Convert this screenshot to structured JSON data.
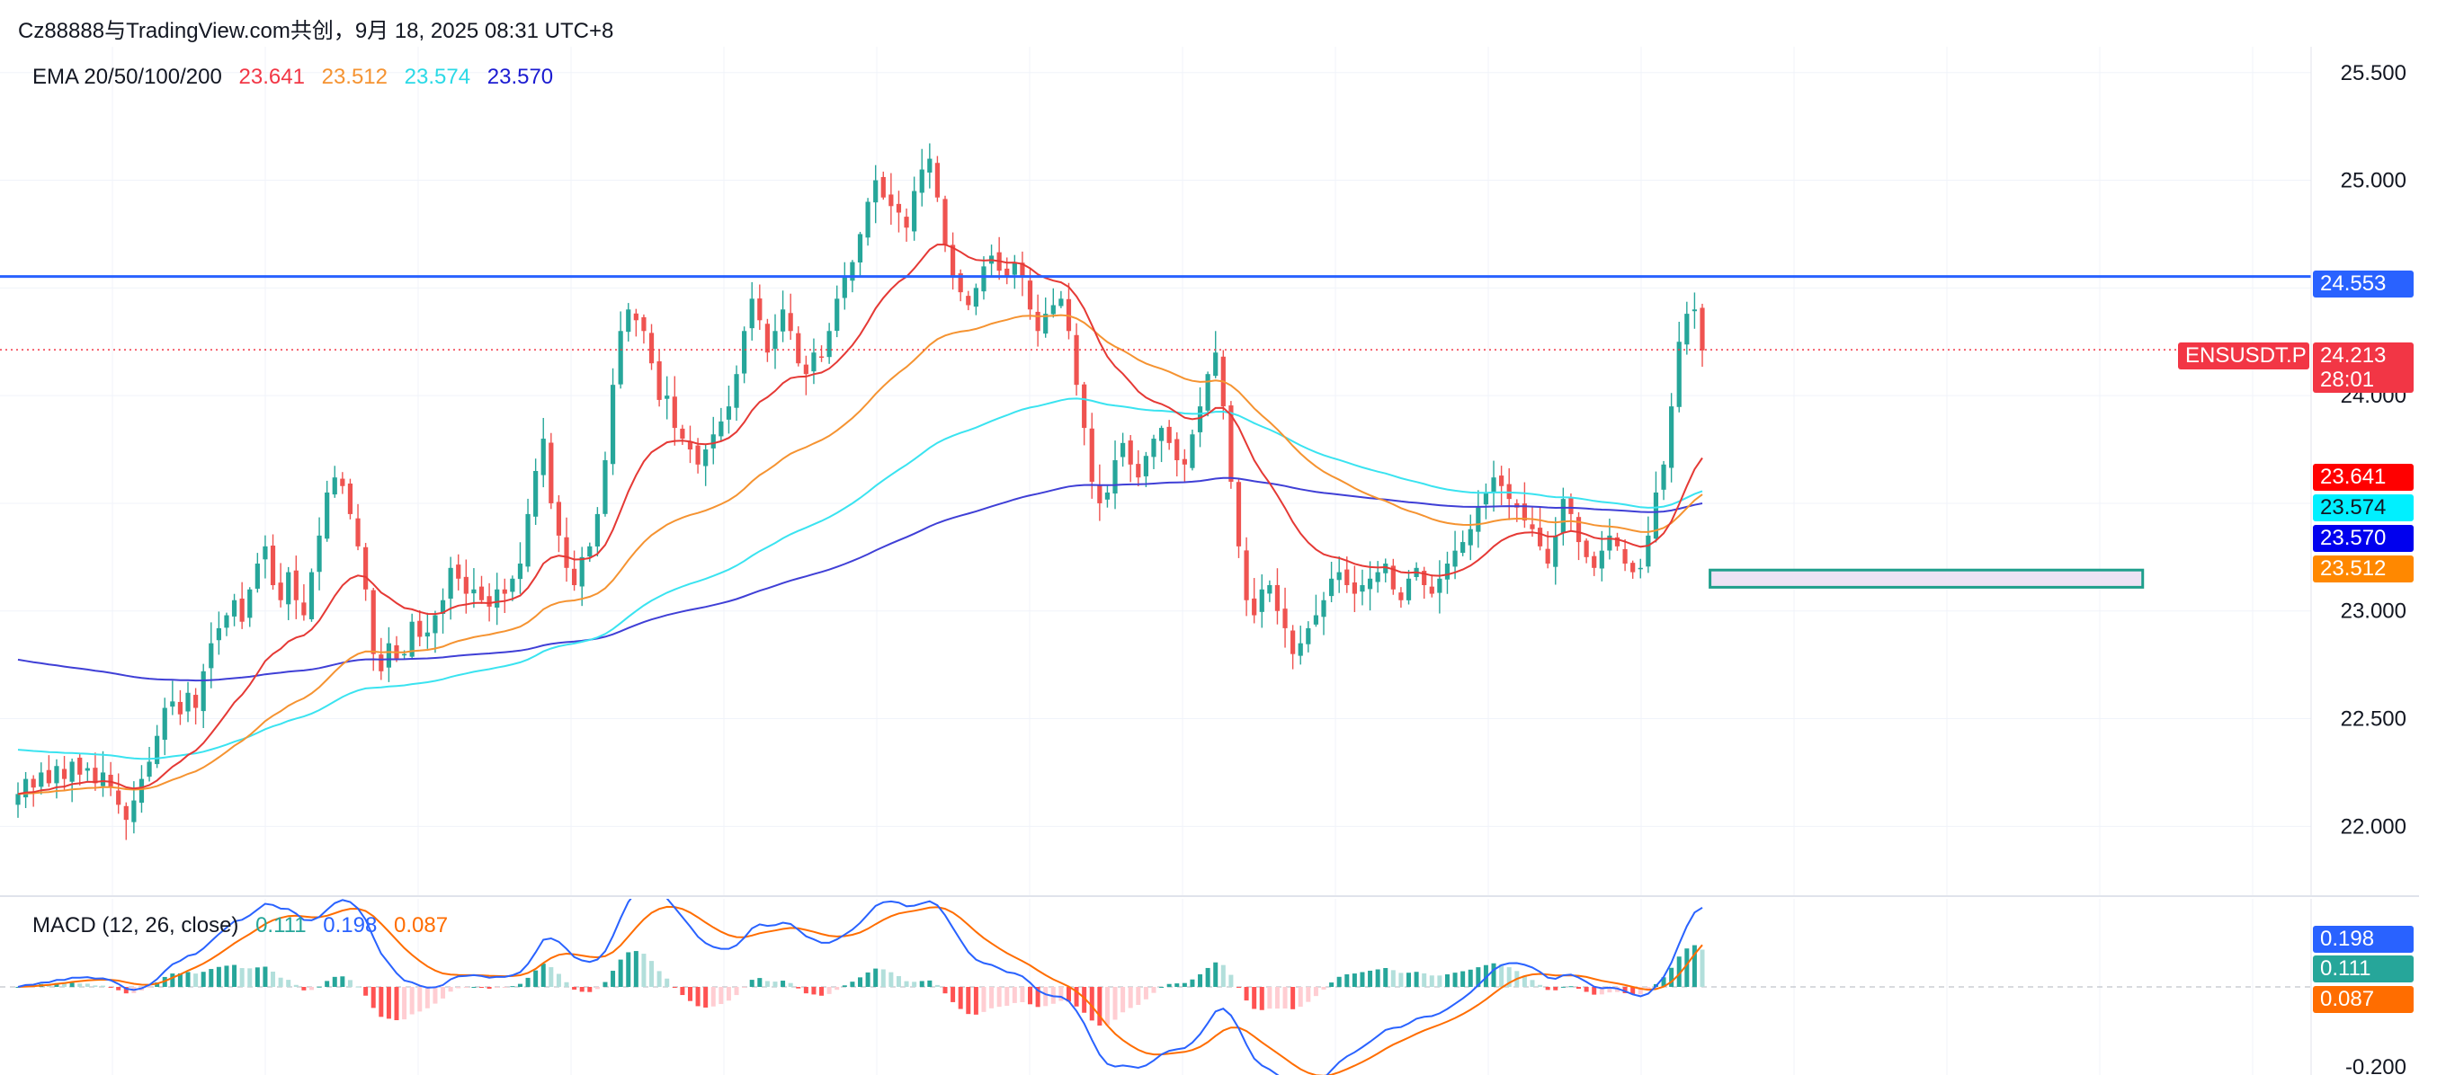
{
  "header": {
    "title": "Cz88888与TradingView.com共创，9月 18, 2025 08:31 UTC+8"
  },
  "colors": {
    "up": "#26a69a",
    "down": "#ef5350",
    "ema20": "#e53935",
    "ema50": "#f59331",
    "ema100": "#3ae3f0",
    "ema200": "#3f3fd6",
    "resistance": "#2962ff",
    "price_line": "#f23645",
    "macd_line": "#2962ff",
    "signal_line": "#ff6d00",
    "grid": "#f0f3fa"
  },
  "ema_legend": {
    "label": "EMA 20/50/100/200",
    "values": [
      {
        "text": "23.641",
        "color": "#f23645"
      },
      {
        "text": "23.512",
        "color": "#f59331"
      },
      {
        "text": "23.574",
        "color": "#2bd9e6"
      },
      {
        "text": "23.570",
        "color": "#1b1bd1"
      }
    ]
  },
  "macd_legend": {
    "label": "MACD (12, 26, close)",
    "values": [
      {
        "text": "0.111",
        "color": "#26a69a"
      },
      {
        "text": "0.198",
        "color": "#2962ff"
      },
      {
        "text": "0.087",
        "color": "#ff6d00"
      }
    ]
  },
  "price_tags": {
    "resistance": {
      "text": "24.553",
      "color": "#2962ff"
    },
    "symbol": {
      "text": "ENSUSDT.P",
      "color": "#f23645"
    },
    "last": {
      "text": "24.213",
      "color": "#f23645"
    },
    "countdown": {
      "text": "28:01",
      "color": "#f23645"
    },
    "ema20": {
      "text": "23.641",
      "color": "#ff0000"
    },
    "ema100": {
      "text": "23.574",
      "color": "#00f0ff"
    },
    "ema200": {
      "text": "23.570",
      "color": "#0000ee"
    },
    "ema50": {
      "text": "23.512",
      "color": "#ff8800"
    }
  },
  "macd_tags": {
    "macd": {
      "text": "0.198",
      "color": "#2962ff"
    },
    "hist": {
      "text": "0.111",
      "color": "#26a69a"
    },
    "signal": {
      "text": "0.087",
      "color": "#ff6d00"
    }
  },
  "chart_data": {
    "type": "candlestick",
    "symbol": "ENSUSDT.P",
    "y_ticks": [
      "25.500",
      "25.000",
      "24.500",
      "24.000",
      "23.500",
      "23.000",
      "22.500",
      "22.000"
    ],
    "ylim": [
      21.68,
      25.62
    ],
    "resistance_level": 24.553,
    "last_price": 24.213,
    "zone": {
      "low": 23.11,
      "high": 23.19,
      "from_index": 219,
      "to_index": 275
    },
    "close_series": [
      22.15,
      22.22,
      22.18,
      22.25,
      22.2,
      22.28,
      22.22,
      22.3,
      22.24,
      22.27,
      22.2,
      22.25,
      22.18,
      22.1,
      22.03,
      22.12,
      22.22,
      22.3,
      22.42,
      22.55,
      22.58,
      22.52,
      22.62,
      22.55,
      22.72,
      22.85,
      22.92,
      22.98,
      23.05,
      22.95,
      23.1,
      23.22,
      23.3,
      23.12,
      23.05,
      23.18,
      23.05,
      22.98,
      23.18,
      23.35,
      23.55,
      23.62,
      23.58,
      23.45,
      23.3,
      23.1,
      22.8,
      22.72,
      22.85,
      22.78,
      22.8,
      22.95,
      22.88,
      22.9,
      22.98,
      23.05,
      23.2,
      23.15,
      23.08,
      23.1,
      23.05,
      23.02,
      23.1,
      23.08,
      23.15,
      23.22,
      23.45,
      23.65,
      23.8,
      23.5,
      23.35,
      23.2,
      23.12,
      23.25,
      23.3,
      23.45,
      23.7,
      24.05,
      24.3,
      24.4,
      24.35,
      24.3,
      24.15,
      23.98,
      24.0,
      23.85,
      23.8,
      23.75,
      23.68,
      23.75,
      23.82,
      23.88,
      23.95,
      24.1,
      24.3,
      24.45,
      24.35,
      24.2,
      24.3,
      24.4,
      24.3,
      24.15,
      24.1,
      24.2,
      24.18,
      24.3,
      24.45,
      24.55,
      24.62,
      24.75,
      24.9,
      25.0,
      24.92,
      24.88,
      24.85,
      24.78,
      24.95,
      25.05,
      25.1,
      24.92,
      24.7,
      24.55,
      24.48,
      24.42,
      24.5,
      24.6,
      24.65,
      24.58,
      24.55,
      24.62,
      24.55,
      24.4,
      24.3,
      24.38,
      24.42,
      24.45,
      24.3,
      24.05,
      23.85,
      23.6,
      23.5,
      23.55,
      23.7,
      23.78,
      23.68,
      23.62,
      23.72,
      23.8,
      23.85,
      23.78,
      23.7,
      23.68,
      23.82,
      23.95,
      24.1,
      24.2,
      23.95,
      23.6,
      23.3,
      23.05,
      22.98,
      23.1,
      23.12,
      23.0,
      22.92,
      22.8,
      22.85,
      22.92,
      22.98,
      23.05,
      23.15,
      23.18,
      23.12,
      23.08,
      23.12,
      23.15,
      23.18,
      23.22,
      23.1,
      23.05,
      23.15,
      23.2,
      23.12,
      23.08,
      23.15,
      23.22,
      23.28,
      23.32,
      23.38,
      23.48,
      23.55,
      23.62,
      23.58,
      23.52,
      23.48,
      23.42,
      23.38,
      23.3,
      23.22,
      23.35,
      23.52,
      23.45,
      23.32,
      23.25,
      23.2,
      23.28,
      23.35,
      23.3,
      23.22,
      23.18,
      23.2,
      23.35,
      23.55,
      23.68,
      23.95,
      24.25,
      24.38,
      24.4,
      24.21
    ],
    "macd_panel": {
      "type": "macd",
      "params": "12, 26, close",
      "y_ticks": [
        "-0.200"
      ],
      "ylim": [
        -0.22,
        0.22
      ],
      "last": {
        "macd": 0.198,
        "signal": 0.087,
        "histogram": 0.111
      }
    }
  }
}
